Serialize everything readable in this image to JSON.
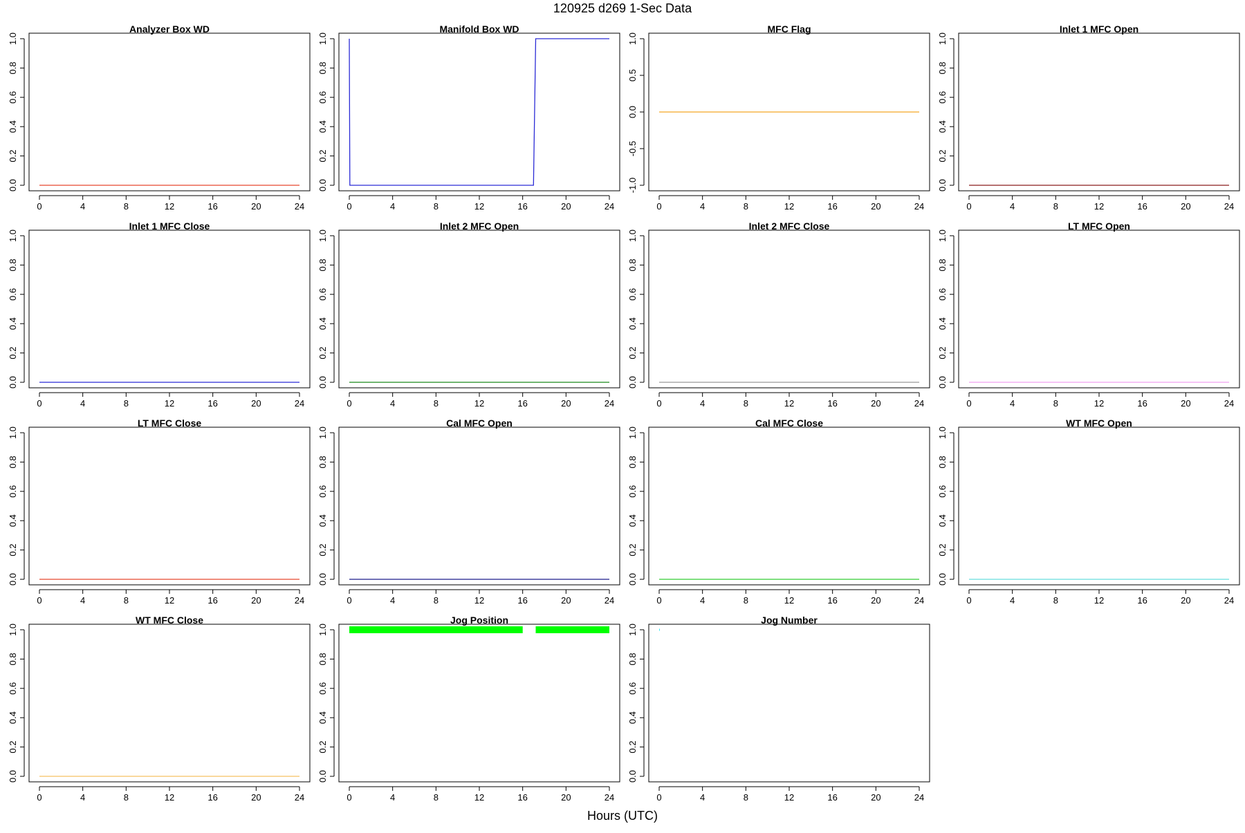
{
  "title": "120925   d269   1-Sec Data",
  "xlabel": "Hours (UTC)",
  "chart_data": [
    {
      "type": "line",
      "title": "Analyzer Box WD",
      "color": "#e8472e",
      "xlim": [
        0,
        24
      ],
      "ylim": [
        0,
        1
      ],
      "x_ticks": [
        0,
        4,
        8,
        12,
        16,
        20,
        24
      ],
      "y_ticks": [
        "0.0",
        "0.2",
        "0.4",
        "0.6",
        "0.8",
        "1.0"
      ],
      "series": [
        {
          "x": [
            0,
            24
          ],
          "y": [
            0,
            0
          ]
        }
      ]
    },
    {
      "type": "line",
      "title": "Manifold Box WD",
      "color": "#2b2bd6",
      "xlim": [
        0,
        24
      ],
      "ylim": [
        0,
        1
      ],
      "x_ticks": [
        0,
        4,
        8,
        12,
        16,
        20,
        24
      ],
      "y_ticks": [
        "0.0",
        "0.2",
        "0.4",
        "0.6",
        "0.8",
        "1.0"
      ],
      "series": [
        {
          "x": [
            0,
            0,
            0.05,
            17,
            17.2,
            24
          ],
          "y": [
            1,
            1,
            0,
            0,
            1,
            1
          ]
        }
      ]
    },
    {
      "type": "line",
      "title": "MFC Flag",
      "color": "#f5a623",
      "xlim": [
        0,
        24
      ],
      "ylim": [
        -1,
        1
      ],
      "x_ticks": [
        0,
        4,
        8,
        12,
        16,
        20,
        24
      ],
      "y_ticks": [
        "-1.0",
        "-0.5",
        "0.0",
        "0.5",
        "1.0"
      ],
      "series": [
        {
          "x": [
            0,
            24
          ],
          "y": [
            0,
            0
          ]
        }
      ]
    },
    {
      "type": "line",
      "title": "Inlet 1 MFC Open",
      "color": "#8b1a1a",
      "xlim": [
        0,
        24
      ],
      "ylim": [
        0,
        1
      ],
      "x_ticks": [
        0,
        4,
        8,
        12,
        16,
        20,
        24
      ],
      "y_ticks": [
        "0.0",
        "0.2",
        "0.4",
        "0.6",
        "0.8",
        "1.0"
      ],
      "series": [
        {
          "x": [
            0,
            24
          ],
          "y": [
            0,
            0
          ]
        }
      ]
    },
    {
      "type": "line",
      "title": "Inlet 1 MFC Close",
      "color": "#2b2bd6",
      "xlim": [
        0,
        24
      ],
      "ylim": [
        0,
        1
      ],
      "x_ticks": [
        0,
        4,
        8,
        12,
        16,
        20,
        24
      ],
      "y_ticks": [
        "0.0",
        "0.2",
        "0.4",
        "0.6",
        "0.8",
        "1.0"
      ],
      "series": [
        {
          "x": [
            0,
            24
          ],
          "y": [
            0,
            0
          ]
        }
      ]
    },
    {
      "type": "line",
      "title": "Inlet 2 MFC Open",
      "color": "#1a8a1a",
      "xlim": [
        0,
        24
      ],
      "ylim": [
        0,
        1
      ],
      "x_ticks": [
        0,
        4,
        8,
        12,
        16,
        20,
        24
      ],
      "y_ticks": [
        "0.0",
        "0.2",
        "0.4",
        "0.6",
        "0.8",
        "1.0"
      ],
      "series": [
        {
          "x": [
            0,
            24
          ],
          "y": [
            0,
            0
          ]
        }
      ]
    },
    {
      "type": "line",
      "title": "Inlet 2 MFC Close",
      "color": "#999999",
      "xlim": [
        0,
        24
      ],
      "ylim": [
        0,
        1
      ],
      "x_ticks": [
        0,
        4,
        8,
        12,
        16,
        20,
        24
      ],
      "y_ticks": [
        "0.0",
        "0.2",
        "0.4",
        "0.6",
        "0.8",
        "1.0"
      ],
      "series": [
        {
          "x": [
            0,
            24
          ],
          "y": [
            0,
            0
          ]
        }
      ]
    },
    {
      "type": "line",
      "title": "LT MFC Open",
      "color": "#f0a0f0",
      "xlim": [
        0,
        24
      ],
      "ylim": [
        0,
        1
      ],
      "x_ticks": [
        0,
        4,
        8,
        12,
        16,
        20,
        24
      ],
      "y_ticks": [
        "0.0",
        "0.2",
        "0.4",
        "0.6",
        "0.8",
        "1.0"
      ],
      "series": [
        {
          "x": [
            0,
            24
          ],
          "y": [
            0,
            0
          ]
        }
      ]
    },
    {
      "type": "line",
      "title": "LT MFC Close",
      "color": "#e8472e",
      "xlim": [
        0,
        24
      ],
      "ylim": [
        0,
        1
      ],
      "x_ticks": [
        0,
        4,
        8,
        12,
        16,
        20,
        24
      ],
      "y_ticks": [
        "0.0",
        "0.2",
        "0.4",
        "0.6",
        "0.8",
        "1.0"
      ],
      "series": [
        {
          "x": [
            0,
            24
          ],
          "y": [
            0,
            0
          ]
        }
      ]
    },
    {
      "type": "line",
      "title": "Cal MFC Open",
      "color": "#1a1a8a",
      "xlim": [
        0,
        24
      ],
      "ylim": [
        0,
        1
      ],
      "x_ticks": [
        0,
        4,
        8,
        12,
        16,
        20,
        24
      ],
      "y_ticks": [
        "0.0",
        "0.2",
        "0.4",
        "0.6",
        "0.8",
        "1.0"
      ],
      "series": [
        {
          "x": [
            0,
            24
          ],
          "y": [
            0,
            0
          ]
        }
      ]
    },
    {
      "type": "line",
      "title": "Cal MFC Close",
      "color": "#33cc33",
      "xlim": [
        0,
        24
      ],
      "ylim": [
        0,
        1
      ],
      "x_ticks": [
        0,
        4,
        8,
        12,
        16,
        20,
        24
      ],
      "y_ticks": [
        "0.0",
        "0.2",
        "0.4",
        "0.6",
        "0.8",
        "1.0"
      ],
      "series": [
        {
          "x": [
            0,
            24
          ],
          "y": [
            0,
            0
          ]
        }
      ]
    },
    {
      "type": "line",
      "title": "WT MFC Open",
      "color": "#66dddd",
      "xlim": [
        0,
        24
      ],
      "ylim": [
        0,
        1
      ],
      "x_ticks": [
        0,
        4,
        8,
        12,
        16,
        20,
        24
      ],
      "y_ticks": [
        "0.0",
        "0.2",
        "0.4",
        "0.6",
        "0.8",
        "1.0"
      ],
      "series": [
        {
          "x": [
            0,
            24
          ],
          "y": [
            0,
            0
          ]
        }
      ]
    },
    {
      "type": "line",
      "title": "WT MFC Close",
      "color": "#f5c060",
      "xlim": [
        0,
        24
      ],
      "ylim": [
        0,
        1
      ],
      "x_ticks": [
        0,
        4,
        8,
        12,
        16,
        20,
        24
      ],
      "y_ticks": [
        "0.0",
        "0.2",
        "0.4",
        "0.6",
        "0.8",
        "1.0"
      ],
      "series": [
        {
          "x": [
            0,
            24
          ],
          "y": [
            0,
            0
          ]
        }
      ]
    },
    {
      "type": "line",
      "title": "Jog Position",
      "color": "#00ff00",
      "xlim": [
        0,
        24
      ],
      "ylim": [
        0,
        1
      ],
      "x_ticks": [
        0,
        4,
        8,
        12,
        16,
        20,
        24
      ],
      "y_ticks": [
        "0.0",
        "0.2",
        "0.4",
        "0.6",
        "0.8",
        "1.0"
      ],
      "series": [
        {
          "x": [
            0,
            16
          ],
          "y": [
            1,
            1
          ]
        },
        {
          "x": [
            17.2,
            24
          ],
          "y": [
            1,
            1
          ]
        }
      ]
    },
    {
      "type": "line",
      "title": "Jog Number",
      "color": "#00e5ee",
      "xlim": [
        0,
        24
      ],
      "ylim": [
        0,
        1
      ],
      "x_ticks": [
        0,
        4,
        8,
        12,
        16,
        20,
        24
      ],
      "y_ticks": [
        "0.0",
        "0.2",
        "0.4",
        "0.6",
        "0.8",
        "1.0"
      ],
      "series": [
        {
          "x": [
            0,
            0.05
          ],
          "y": [
            1,
            1
          ]
        }
      ]
    }
  ]
}
